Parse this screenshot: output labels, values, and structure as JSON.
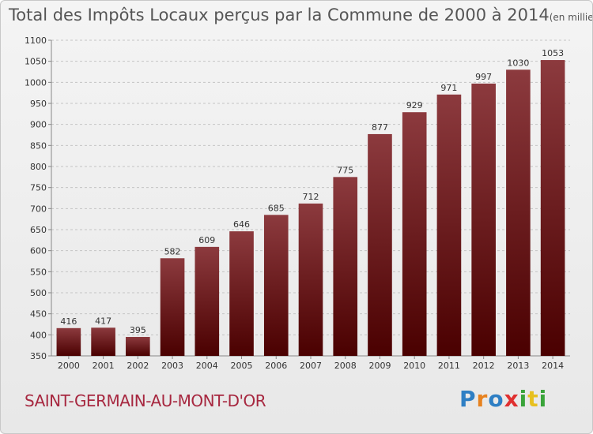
{
  "chart_data": {
    "type": "bar",
    "title": "Total des Impôts Locaux perçus par la Commune de 2000 à 2014",
    "unit_label": "(en milliers d'€)",
    "categories": [
      "2000",
      "2001",
      "2002",
      "2003",
      "2004",
      "2005",
      "2006",
      "2007",
      "2008",
      "2009",
      "2010",
      "2011",
      "2012",
      "2013",
      "2014"
    ],
    "values": [
      416,
      417,
      395,
      582,
      609,
      646,
      685,
      712,
      775,
      877,
      929,
      971,
      997,
      1030,
      1053
    ],
    "data_labels": [
      "416",
      "417",
      "395",
      "582",
      "609",
      "646",
      "685",
      "712",
      "775",
      "877",
      "929",
      "971",
      "997",
      "1030",
      "1053"
    ],
    "ylim": [
      350,
      1100
    ],
    "yticks": [
      350,
      400,
      450,
      500,
      550,
      600,
      650,
      700,
      750,
      800,
      850,
      900,
      950,
      1000,
      1050,
      1100
    ],
    "ytick_labels": [
      "350",
      "400",
      "450",
      "500",
      "550",
      "600",
      "650",
      "700",
      "750",
      "800",
      "850",
      "900",
      "950",
      "1000",
      "1050",
      "1100"
    ],
    "grid": true,
    "bar_color_top": "#8c3a3e",
    "bar_color_bottom": "#4a0000"
  },
  "commune_name": "SAINT-GERMAIN-AU-MONT-D'OR",
  "logo": {
    "letters": [
      "P",
      "r",
      "o",
      "x",
      "i",
      "t",
      "i"
    ],
    "colors": [
      "#2e7fc4",
      "#e7821f",
      "#2e7fc4",
      "#e03030",
      "#3aa43a",
      "#e7c01f",
      "#3aa43a"
    ]
  }
}
